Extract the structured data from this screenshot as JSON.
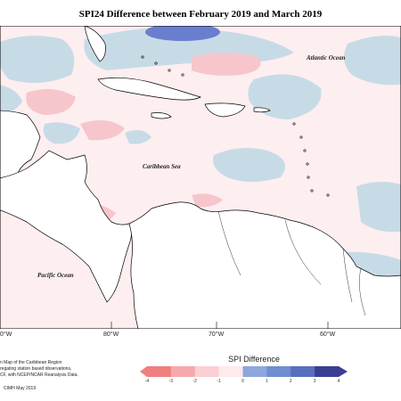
{
  "title": "SPI24 Difference between February 2019 and March 2019",
  "labels": {
    "atlantic": "Atlantic Ocean",
    "caribbean": "Caribbean Sea",
    "pacific": "Pacific Ocean"
  },
  "longitudes": [
    "0°W",
    "80°W",
    "70°W",
    "60°W"
  ],
  "credits": {
    "line1": "n Map of the Caribbean Region",
    "line2": "regating station based observations,",
    "line3": "CF, with NCEP/NCAR Reanalysis Data.",
    "footer": "CIMH May 2019"
  },
  "legend": {
    "title": "SPI Difference",
    "ticks": [
      "-4",
      "-3",
      "-2",
      "-1",
      "0",
      "1",
      "2",
      "3",
      "4"
    ],
    "colors": [
      "#f08080",
      "#f6a9ad",
      "#fbd0d4",
      "#fdeaea",
      "#d8e7ef",
      "#8ea6dc",
      "#6f8fd0",
      "#5a6ebe",
      "#3a3f94"
    ]
  },
  "colors": {
    "ocean_neutral": "#fdeef0",
    "blue_light": "#c7dbe6",
    "blue_dark": "#6a7ecf",
    "pink": "#f6c6cc",
    "land": "#ffffff"
  }
}
